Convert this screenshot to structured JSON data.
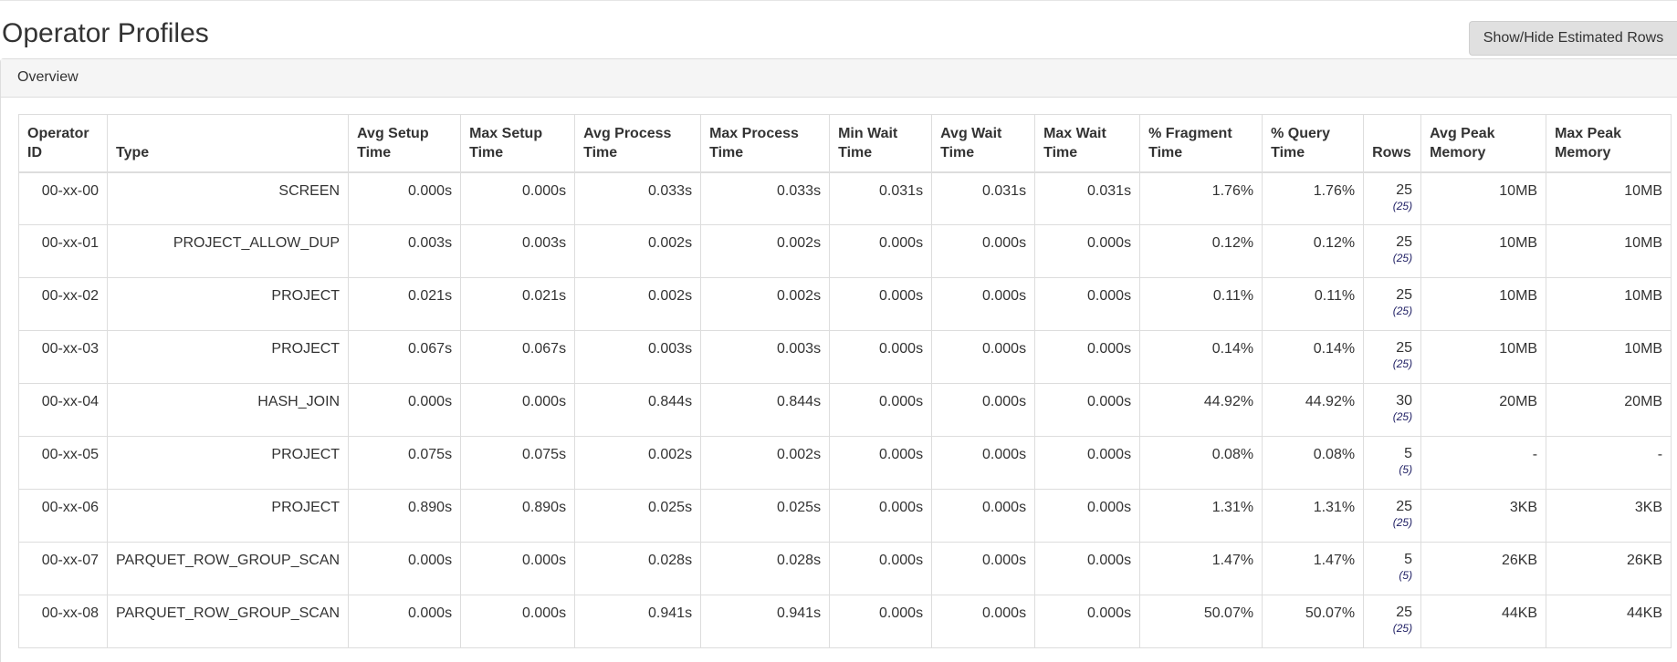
{
  "page": {
    "title": "Operator Profiles",
    "toggle_button_label": "Show/Hide Estimated Rows"
  },
  "panel": {
    "heading": "Overview"
  },
  "table": {
    "headers": [
      "Operator ID",
      "Type",
      "Avg Setup Time",
      "Max Setup Time",
      "Avg Process Time",
      "Max Process Time",
      "Min Wait Time",
      "Avg Wait Time",
      "Max Wait Time",
      "% Fragment Time",
      "% Query Time",
      "Rows",
      "Avg Peak Memory",
      "Max Peak Memory"
    ],
    "rows": [
      {
        "id": "00-xx-00",
        "type": "SCREEN",
        "avg_setup": "0.000s",
        "max_setup": "0.000s",
        "avg_process": "0.033s",
        "max_process": "0.033s",
        "min_wait": "0.031s",
        "avg_wait": "0.031s",
        "max_wait": "0.031s",
        "pct_fragment": "1.76%",
        "pct_query": "1.76%",
        "rows": "25",
        "est_rows": "(25)",
        "avg_peak_mem": "10MB",
        "max_peak_mem": "10MB"
      },
      {
        "id": "00-xx-01",
        "type": "PROJECT_ALLOW_DUP",
        "avg_setup": "0.003s",
        "max_setup": "0.003s",
        "avg_process": "0.002s",
        "max_process": "0.002s",
        "min_wait": "0.000s",
        "avg_wait": "0.000s",
        "max_wait": "0.000s",
        "pct_fragment": "0.12%",
        "pct_query": "0.12%",
        "rows": "25",
        "est_rows": "(25)",
        "avg_peak_mem": "10MB",
        "max_peak_mem": "10MB"
      },
      {
        "id": "00-xx-02",
        "type": "PROJECT",
        "avg_setup": "0.021s",
        "max_setup": "0.021s",
        "avg_process": "0.002s",
        "max_process": "0.002s",
        "min_wait": "0.000s",
        "avg_wait": "0.000s",
        "max_wait": "0.000s",
        "pct_fragment": "0.11%",
        "pct_query": "0.11%",
        "rows": "25",
        "est_rows": "(25)",
        "avg_peak_mem": "10MB",
        "max_peak_mem": "10MB"
      },
      {
        "id": "00-xx-03",
        "type": "PROJECT",
        "avg_setup": "0.067s",
        "max_setup": "0.067s",
        "avg_process": "0.003s",
        "max_process": "0.003s",
        "min_wait": "0.000s",
        "avg_wait": "0.000s",
        "max_wait": "0.000s",
        "pct_fragment": "0.14%",
        "pct_query": "0.14%",
        "rows": "25",
        "est_rows": "(25)",
        "avg_peak_mem": "10MB",
        "max_peak_mem": "10MB"
      },
      {
        "id": "00-xx-04",
        "type": "HASH_JOIN",
        "avg_setup": "0.000s",
        "max_setup": "0.000s",
        "avg_process": "0.844s",
        "max_process": "0.844s",
        "min_wait": "0.000s",
        "avg_wait": "0.000s",
        "max_wait": "0.000s",
        "pct_fragment": "44.92%",
        "pct_query": "44.92%",
        "rows": "30",
        "est_rows": "(25)",
        "avg_peak_mem": "20MB",
        "max_peak_mem": "20MB"
      },
      {
        "id": "00-xx-05",
        "type": "PROJECT",
        "avg_setup": "0.075s",
        "max_setup": "0.075s",
        "avg_process": "0.002s",
        "max_process": "0.002s",
        "min_wait": "0.000s",
        "avg_wait": "0.000s",
        "max_wait": "0.000s",
        "pct_fragment": "0.08%",
        "pct_query": "0.08%",
        "rows": "5",
        "est_rows": "(5)",
        "avg_peak_mem": "-",
        "max_peak_mem": "-"
      },
      {
        "id": "00-xx-06",
        "type": "PROJECT",
        "avg_setup": "0.890s",
        "max_setup": "0.890s",
        "avg_process": "0.025s",
        "max_process": "0.025s",
        "min_wait": "0.000s",
        "avg_wait": "0.000s",
        "max_wait": "0.000s",
        "pct_fragment": "1.31%",
        "pct_query": "1.31%",
        "rows": "25",
        "est_rows": "(25)",
        "avg_peak_mem": "3KB",
        "max_peak_mem": "3KB"
      },
      {
        "id": "00-xx-07",
        "type": "PARQUET_ROW_GROUP_SCAN",
        "avg_setup": "0.000s",
        "max_setup": "0.000s",
        "avg_process": "0.028s",
        "max_process": "0.028s",
        "min_wait": "0.000s",
        "avg_wait": "0.000s",
        "max_wait": "0.000s",
        "pct_fragment": "1.47%",
        "pct_query": "1.47%",
        "rows": "5",
        "est_rows": "(5)",
        "avg_peak_mem": "26KB",
        "max_peak_mem": "26KB"
      },
      {
        "id": "00-xx-08",
        "type": "PARQUET_ROW_GROUP_SCAN",
        "avg_setup": "0.000s",
        "max_setup": "0.000s",
        "avg_process": "0.941s",
        "max_process": "0.941s",
        "min_wait": "0.000s",
        "avg_wait": "0.000s",
        "max_wait": "0.000s",
        "pct_fragment": "50.07%",
        "pct_query": "50.07%",
        "rows": "25",
        "est_rows": "(25)",
        "avg_peak_mem": "44KB",
        "max_peak_mem": "44KB"
      }
    ]
  }
}
